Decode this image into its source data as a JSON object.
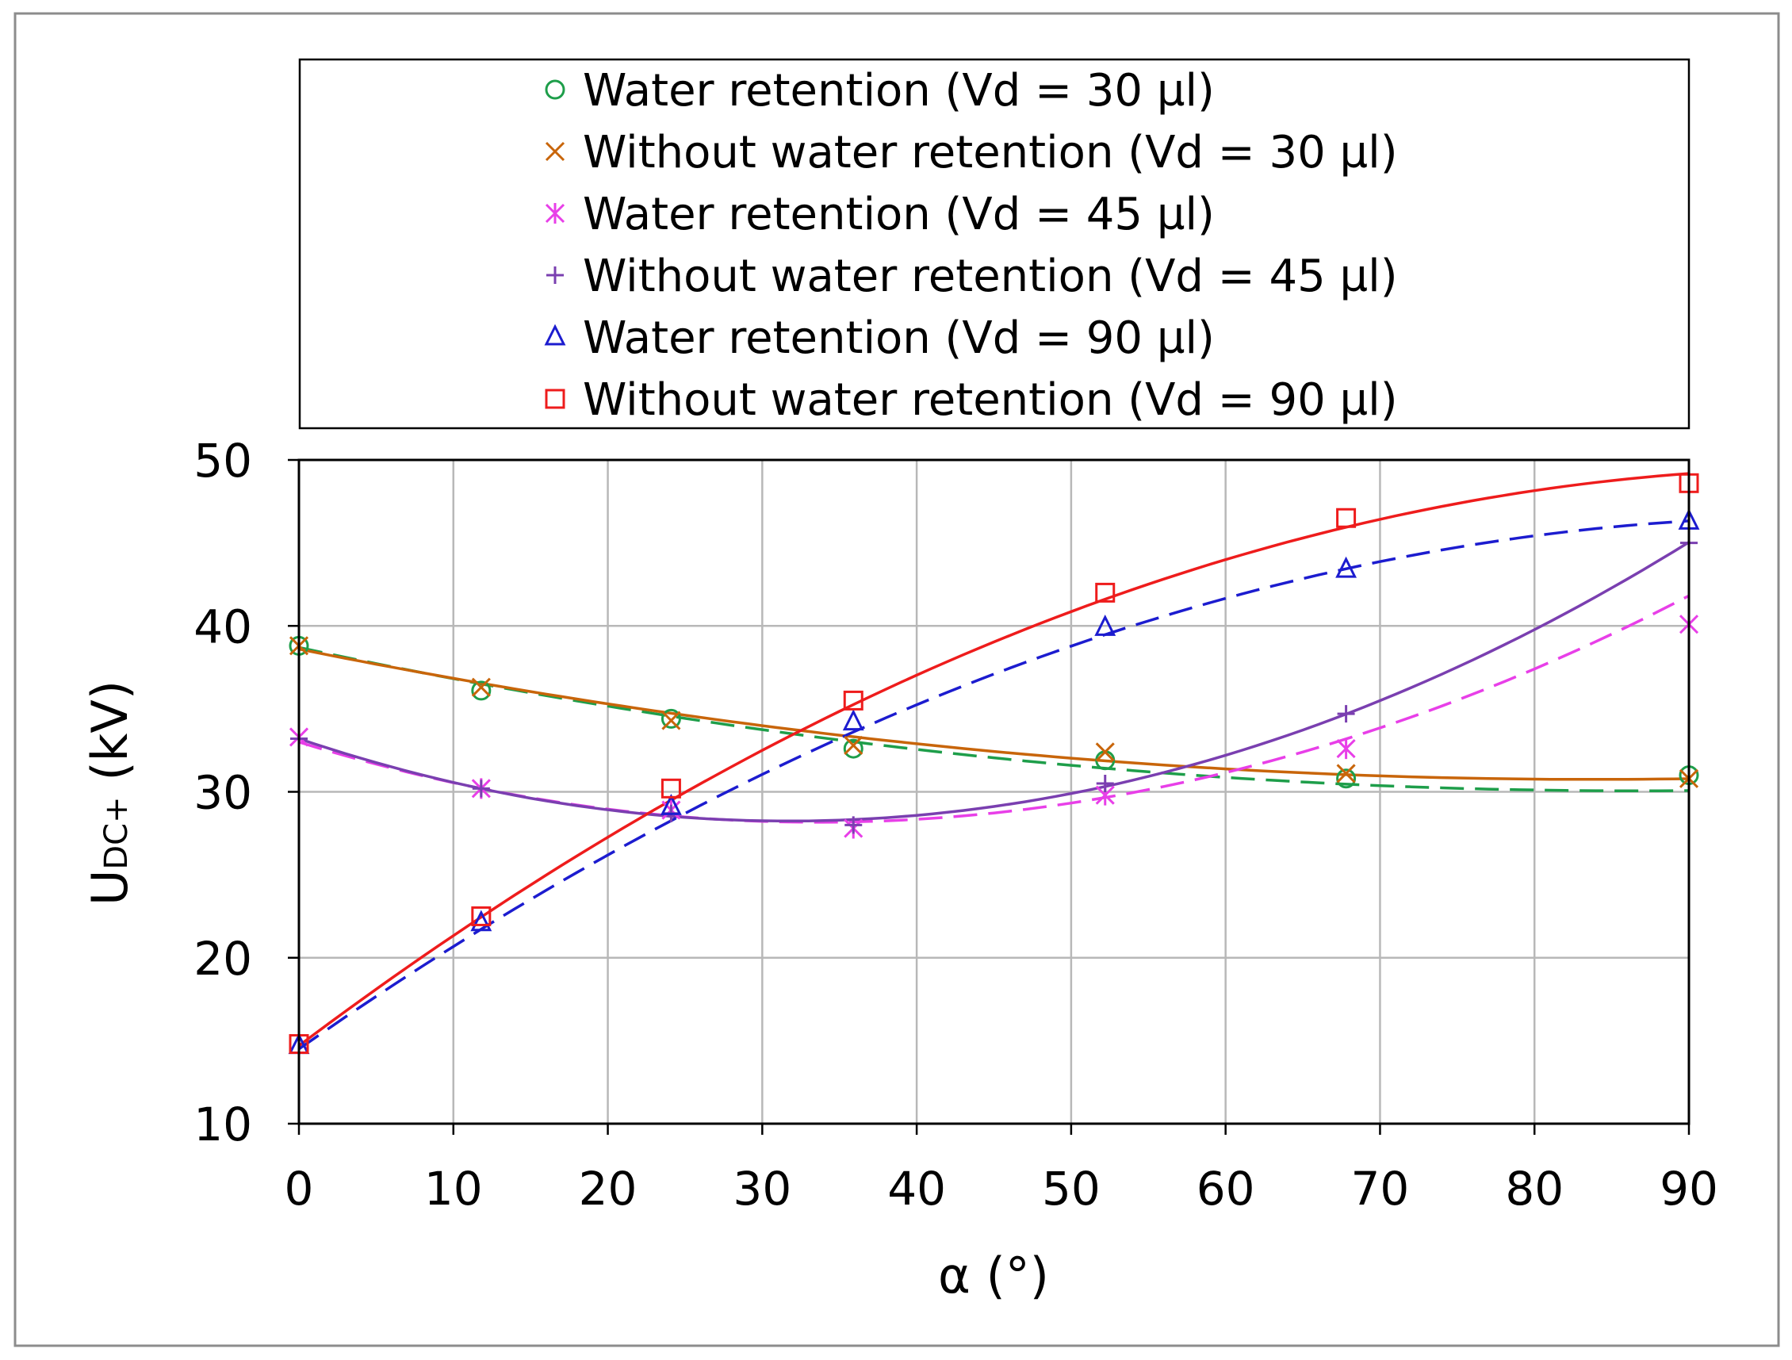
{
  "chart_data": {
    "type": "line",
    "title": "",
    "xlabel": "α (°)",
    "ylabel_main": "U",
    "ylabel_sub": "DC+",
    "ylabel_unit": " (kV)",
    "xlim": [
      0,
      90
    ],
    "ylim": [
      10,
      50
    ],
    "xticks": [
      0,
      10,
      20,
      30,
      40,
      50,
      60,
      70,
      80,
      90
    ],
    "yticks": [
      10,
      20,
      30,
      40,
      50
    ],
    "grid": true,
    "legend_position": "top",
    "x": [
      0,
      11.8,
      24.1,
      35.9,
      52.2,
      67.8,
      90
    ],
    "series": [
      {
        "name": "Water retention (Vd = 30 µl)",
        "color": "#1e9e4a",
        "marker": "circle",
        "dash": "dashed",
        "values": [
          38.8,
          36.1,
          34.4,
          32.6,
          31.9,
          30.8,
          31.0
        ],
        "fit": [
          38.7,
          -0.1998,
          0.001155
        ]
      },
      {
        "name": "Without water retention (Vd = 30 µl)",
        "color": "#c8650a",
        "marker": "x",
        "dash": "solid",
        "values": [
          38.8,
          36.3,
          34.3,
          32.8,
          32.4,
          31.1,
          30.8
        ],
        "fit": [
          38.6,
          -0.1873,
          0.001117
        ]
      },
      {
        "name": "Water retention (Vd = 45 µl)",
        "color": "#e83fe8",
        "marker": "asterisk",
        "dash": "dashed",
        "values": [
          33.3,
          30.2,
          28.9,
          27.8,
          29.8,
          32.6,
          40.1
        ],
        "fit": [
          33.0,
          -0.2879,
          0.004287
        ]
      },
      {
        "name": "Without water retention (Vd = 45 µl)",
        "color": "#7a3fb0",
        "marker": "plus",
        "dash": "solid",
        "values": [
          33.2,
          30.2,
          28.7,
          28.0,
          30.5,
          34.7,
          45.0
        ],
        "fit": [
          33.2,
          -0.3131,
          0.004941
        ]
      },
      {
        "name": "Water retention (Vd = 90 µl)",
        "color": "#1c1ccf",
        "marker": "triangle",
        "dash": "dashed",
        "values": [
          14.7,
          22.1,
          29.1,
          34.2,
          39.9,
          43.4,
          46.3
        ],
        "fit": [
          14.5,
          0.6506,
          -0.0033
        ]
      },
      {
        "name": "Without water retention (Vd = 90 µl)",
        "color": "#ee1c1c",
        "marker": "square",
        "dash": "solid",
        "values": [
          14.8,
          22.5,
          30.2,
          35.5,
          42.0,
          46.5,
          48.6
        ],
        "fit": [
          14.7,
          0.6983,
          -0.003502
        ]
      }
    ]
  }
}
